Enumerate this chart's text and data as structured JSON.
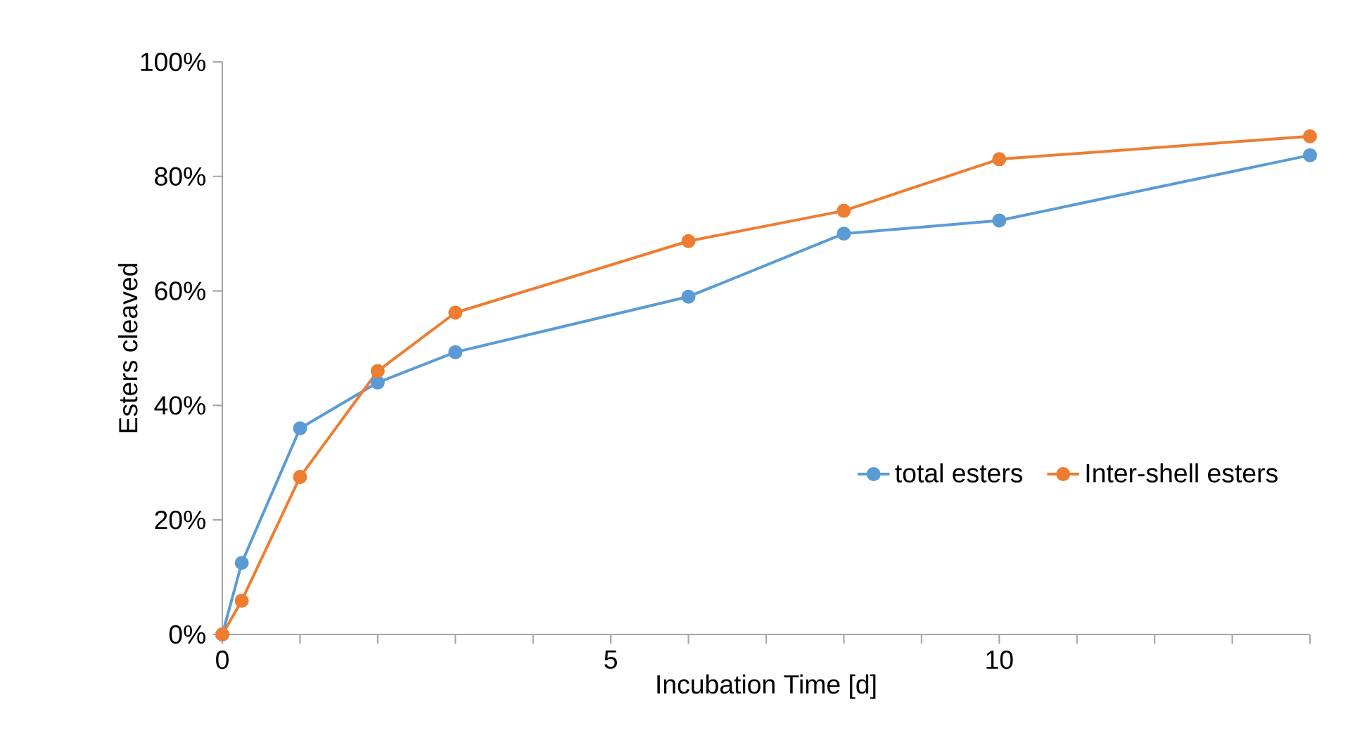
{
  "chart_data": {
    "type": "line",
    "xlabel": "Incubation Time [d]",
    "ylabel": "Esters cleaved",
    "x": [
      0,
      0.25,
      1,
      2,
      3,
      6,
      8,
      10,
      14
    ],
    "series": [
      {
        "name": "total esters",
        "color": "#5b9bd5",
        "values": [
          0,
          12.5,
          36,
          44,
          49.3,
          59,
          70,
          72.3,
          83.7
        ]
      },
      {
        "name": "Inter-shell esters",
        "color": "#ed7d31",
        "values": [
          0,
          5.9,
          27.5,
          46,
          56.2,
          68.7,
          74,
          83,
          87
        ]
      }
    ],
    "xlim": [
      0,
      14
    ],
    "ylim": [
      0,
      100
    ],
    "xticks": [
      0,
      {
        "value": 1,
        "label": null
      },
      {
        "value": 2,
        "label": null
      },
      {
        "value": 3,
        "label": null
      },
      {
        "value": 4,
        "label": null
      },
      5,
      {
        "value": 6,
        "label": null
      },
      {
        "value": 7,
        "label": null
      },
      {
        "value": 8,
        "label": null
      },
      {
        "value": 9,
        "label": null
      },
      10,
      {
        "value": 11,
        "label": null
      },
      {
        "value": 12,
        "label": null
      },
      {
        "value": 13,
        "label": null
      },
      {
        "value": 14,
        "label": null
      }
    ],
    "yticks": [
      {
        "value": 0,
        "label": "0%"
      },
      {
        "value": 20,
        "label": "20%"
      },
      {
        "value": 40,
        "label": "40%"
      },
      {
        "value": 60,
        "label": "60%"
      },
      {
        "value": 80,
        "label": "80%"
      },
      {
        "value": 100,
        "label": "100%"
      }
    ],
    "legend": "right",
    "marker": "circle",
    "line_style": "solid",
    "grid": false
  }
}
